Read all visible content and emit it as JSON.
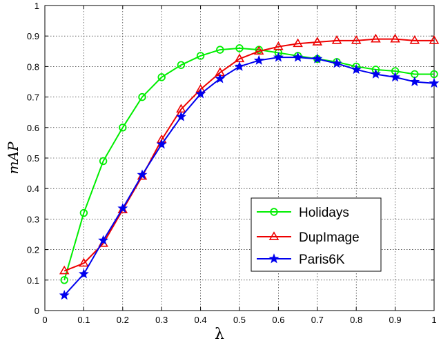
{
  "chart_data": {
    "type": "line",
    "title": "",
    "xlabel": "λ",
    "ylabel": "mAP",
    "xlim": [
      0,
      1
    ],
    "ylim": [
      0,
      1
    ],
    "x_ticks": [
      "0",
      "0.1",
      "0.2",
      "0.3",
      "0.4",
      "0.5",
      "0.6",
      "0.7",
      "0.8",
      "0.9",
      "1"
    ],
    "y_ticks": [
      "0",
      "0.1",
      "0.2",
      "0.3",
      "0.4",
      "0.5",
      "0.6",
      "0.7",
      "0.8",
      "0.9",
      "1"
    ],
    "grid": "on, dotted",
    "legend_position": "bottom-right",
    "x": [
      0.05,
      0.1,
      0.15,
      0.2,
      0.25,
      0.3,
      0.35,
      0.4,
      0.45,
      0.5,
      0.55,
      0.6,
      0.65,
      0.7,
      0.75,
      0.8,
      0.85,
      0.9,
      0.95,
      1.0
    ],
    "series": [
      {
        "name": "Holidays",
        "color": "#00ee00",
        "marker": "circle",
        "values": [
          0.1,
          0.32,
          0.49,
          0.6,
          0.7,
          0.765,
          0.805,
          0.835,
          0.855,
          0.86,
          0.855,
          0.845,
          0.835,
          0.825,
          0.815,
          0.8,
          0.79,
          0.785,
          0.775,
          0.775
        ]
      },
      {
        "name": "DupImage",
        "color": "#ee0000",
        "marker": "triangle",
        "values": [
          0.13,
          0.155,
          0.22,
          0.33,
          0.44,
          0.56,
          0.66,
          0.725,
          0.78,
          0.825,
          0.85,
          0.865,
          0.875,
          0.88,
          0.885,
          0.885,
          0.89,
          0.89,
          0.885,
          0.885
        ]
      },
      {
        "name": "Paris6K",
        "color": "#0000ee",
        "marker": "star",
        "values": [
          0.05,
          0.12,
          0.23,
          0.335,
          0.445,
          0.545,
          0.635,
          0.71,
          0.76,
          0.8,
          0.82,
          0.83,
          0.83,
          0.825,
          0.81,
          0.79,
          0.775,
          0.765,
          0.75,
          0.745
        ]
      }
    ]
  }
}
